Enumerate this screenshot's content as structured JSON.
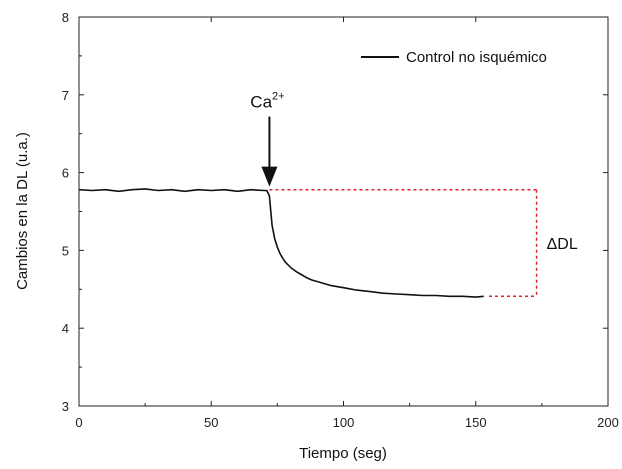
{
  "chart_data": {
    "type": "line",
    "xlabel": "Tiempo (seg)",
    "ylabel": "Cambios en la DL (u.a.)",
    "xlim": [
      0,
      200
    ],
    "ylim": [
      3,
      8
    ],
    "xticks": [
      0,
      50,
      100,
      150,
      200
    ],
    "yticks": [
      3,
      4,
      5,
      6,
      7,
      8
    ],
    "grid": false,
    "legend_position": "top-right",
    "series": [
      {
        "name": "Control no isquémico",
        "color": "#111111",
        "x": [
          0,
          5,
          10,
          15,
          20,
          25,
          30,
          35,
          40,
          45,
          50,
          55,
          60,
          65,
          70,
          71,
          72,
          73,
          74,
          75,
          76,
          77,
          78,
          80,
          82,
          84,
          86,
          88,
          90,
          95,
          100,
          105,
          110,
          115,
          120,
          125,
          130,
          135,
          140,
          145,
          150,
          153
        ],
        "y": [
          5.78,
          5.77,
          5.78,
          5.76,
          5.78,
          5.79,
          5.77,
          5.78,
          5.76,
          5.78,
          5.77,
          5.78,
          5.76,
          5.78,
          5.77,
          5.77,
          5.7,
          5.32,
          5.15,
          5.04,
          4.96,
          4.9,
          4.85,
          4.78,
          4.73,
          4.69,
          4.65,
          4.62,
          4.6,
          4.55,
          4.52,
          4.49,
          4.47,
          4.45,
          4.44,
          4.43,
          4.42,
          4.42,
          4.41,
          4.41,
          4.4,
          4.41
        ]
      }
    ],
    "annotations": {
      "arrow": {
        "label_base": "Ca",
        "label_sup": "2+",
        "x": 72,
        "y_from": 6.72,
        "y_to": 5.82
      },
      "bracket": {
        "label": "ΔDL",
        "x_right": 173,
        "y_top": 5.78,
        "y_bottom": 4.41,
        "x_top_start": 72,
        "x_bottom_start": 155,
        "color": "#e0202a"
      }
    }
  }
}
